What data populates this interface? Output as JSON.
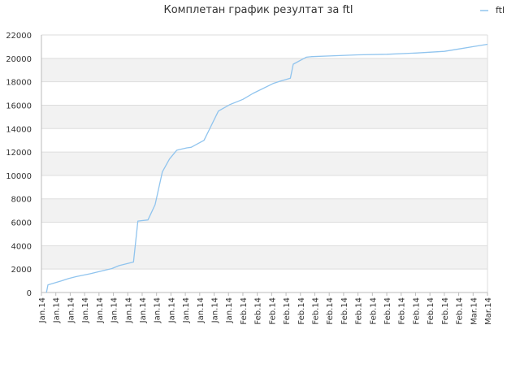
{
  "chart_data": {
    "type": "line",
    "title": "Комплетан график резултат за ftl",
    "legend": {
      "position": "top-right",
      "entries": [
        "ftl"
      ]
    },
    "grid": true,
    "band_colors": [
      "#ffffff",
      "#f2f2f2"
    ],
    "grid_color": "#dddddd",
    "ylim": [
      0,
      22000
    ],
    "y_ticks": [
      0,
      2000,
      4000,
      6000,
      8000,
      10000,
      12000,
      14000,
      16000,
      18000,
      20000,
      22000
    ],
    "x_tick_labels": [
      "Jan.14",
      "Jan.14",
      "Jan.14",
      "Jan.14",
      "Jan.14",
      "Jan.14",
      "Jan.14",
      "Jan.14",
      "Jan.14",
      "Jan.14",
      "Jan.14",
      "Jan.14",
      "Jan.14",
      "Jan.14",
      "Feb.14",
      "Feb.14",
      "Feb.14",
      "Feb.14",
      "Feb.14",
      "Feb.14",
      "Feb.14",
      "Feb.14",
      "Feb.14",
      "Feb.14",
      "Feb.14",
      "Feb.14",
      "Feb.14",
      "Feb.14",
      "Feb.14",
      "Feb.14",
      "Mar.14",
      "Mar.14"
    ],
    "xlim": [
      0,
      31
    ],
    "series": [
      {
        "name": "ftl",
        "color": "#90c4ee",
        "x": [
          0.35,
          0.45,
          1.4,
          1.9,
          2.4,
          3.4,
          4.4,
          4.9,
          5.4,
          6.4,
          6.7,
          7.4,
          7.9,
          8.4,
          8.9,
          9.4,
          10.1,
          10.4,
          11.3,
          12.3,
          13.1,
          14.0,
          14.7,
          16.1,
          16.6,
          17.3,
          17.5,
          18.4,
          18.8,
          20.0,
          22.0,
          24.0,
          26.0,
          28.0,
          29.0,
          30.0,
          31.0
        ],
        "y": [
          0,
          650,
          1000,
          1200,
          1350,
          1600,
          1900,
          2050,
          2300,
          2600,
          6100,
          6200,
          7500,
          10300,
          11400,
          12150,
          12350,
          12400,
          13000,
          15500,
          16050,
          16500,
          17000,
          17850,
          18050,
          18300,
          19500,
          20100,
          20150,
          20200,
          20300,
          20350,
          20450,
          20600,
          20800,
          21000,
          21200
        ]
      }
    ]
  }
}
